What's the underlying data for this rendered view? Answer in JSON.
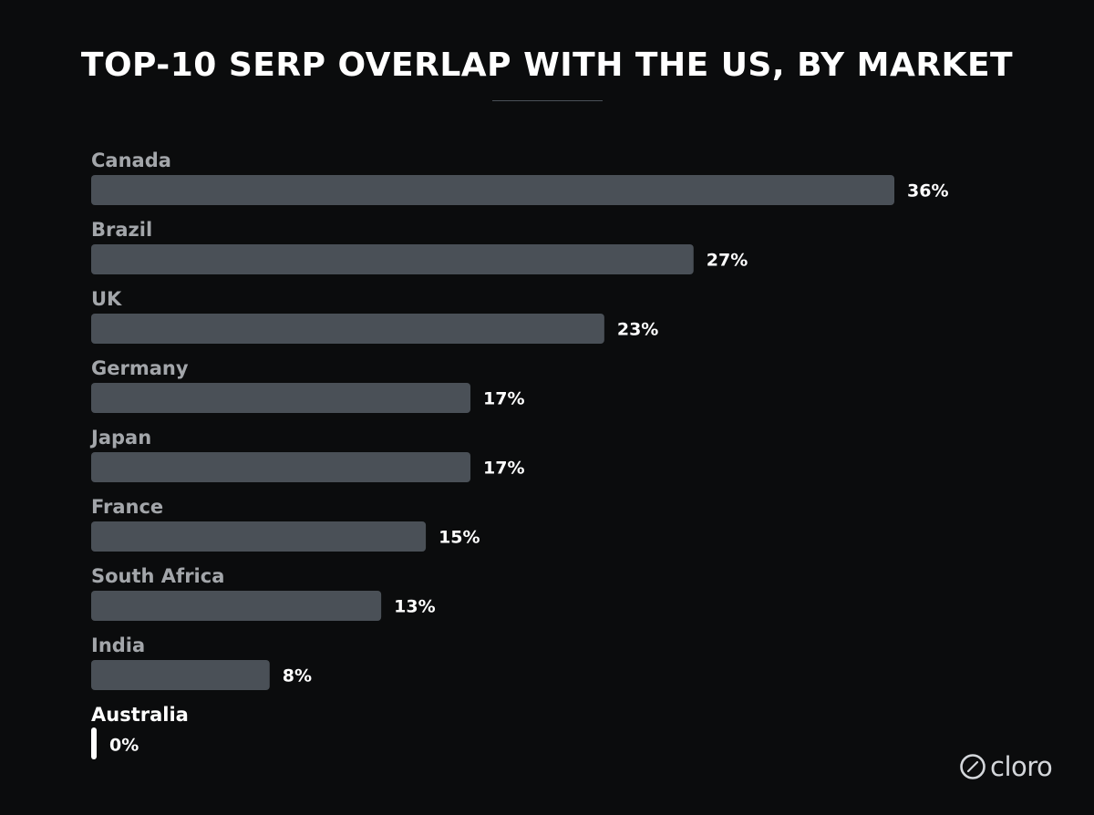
{
  "chart_data": {
    "type": "bar",
    "orientation": "horizontal",
    "title": "TOP-10 SERP OVERLAP WITH THE US, BY MARKET",
    "categories": [
      "Canada",
      "Brazil",
      "UK",
      "Germany",
      "Japan",
      "France",
      "South Africa",
      "India",
      "Australia"
    ],
    "values": [
      36,
      27,
      23,
      17,
      17,
      15,
      13,
      8,
      0
    ],
    "value_labels": [
      "36%",
      "27%",
      "23%",
      "17%",
      "17%",
      "15%",
      "13%",
      "8%",
      "0%"
    ],
    "unit": "%",
    "xlim": [
      0,
      36
    ],
    "grid": false,
    "legend": "none",
    "highlighted_category": "Australia",
    "colors": {
      "background": "#0b0c0d",
      "bar": "#4a5057",
      "highlight_bar": "#ffffff",
      "category_label": "#a3a6aa",
      "highlight_label": "#ffffff",
      "value_label": "#ffffff"
    }
  },
  "brand": {
    "name": "cloro",
    "icon": "slashed-circle-icon"
  }
}
